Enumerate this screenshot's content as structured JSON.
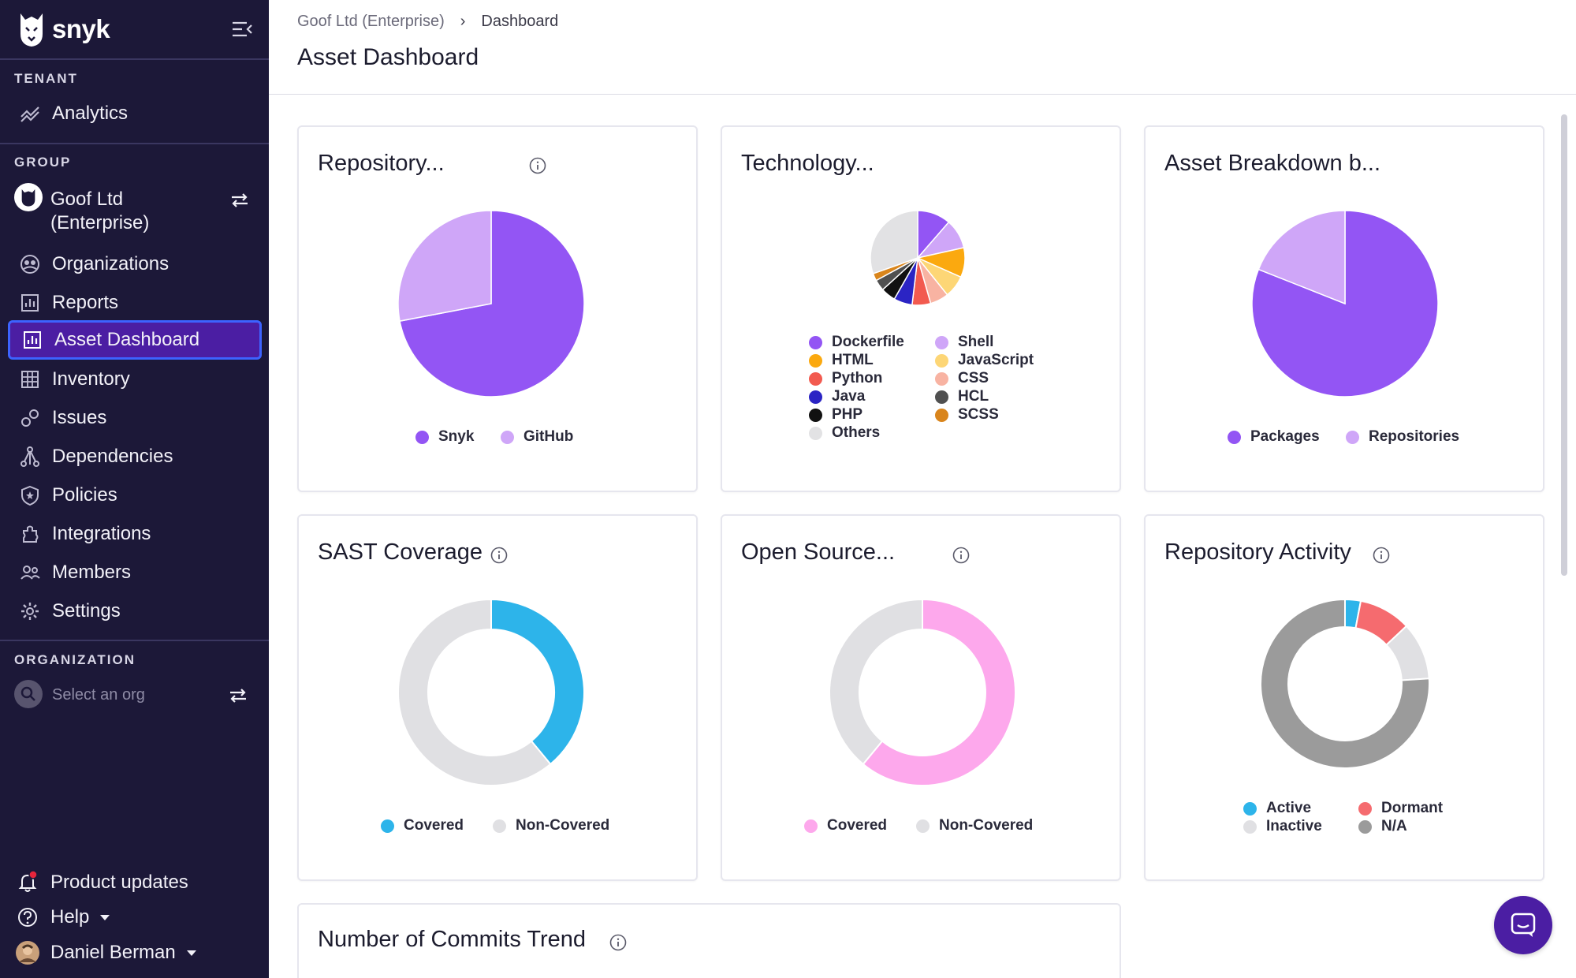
{
  "sidebar": {
    "brand": "snyk",
    "tenant_label": "TENANT",
    "tenant_items": [
      {
        "label": "Analytics",
        "icon": "analytics-icon"
      }
    ],
    "group_label": "GROUP",
    "group_name": "Goof Ltd (Enterprise)",
    "group_items": [
      {
        "label": "Organizations",
        "icon": "organizations-icon"
      },
      {
        "label": "Reports",
        "icon": "reports-icon"
      },
      {
        "label": "Asset Dashboard",
        "icon": "asset-dashboard-icon",
        "active": true
      },
      {
        "label": "Inventory",
        "icon": "inventory-icon"
      },
      {
        "label": "Issues",
        "icon": "issues-icon"
      },
      {
        "label": "Dependencies",
        "icon": "dependencies-icon"
      },
      {
        "label": "Policies",
        "icon": "policies-icon"
      },
      {
        "label": "Integrations",
        "icon": "integrations-icon"
      },
      {
        "label": "Members",
        "icon": "members-icon"
      },
      {
        "label": "Settings",
        "icon": "settings-icon"
      }
    ],
    "org_label": "ORGANIZATION",
    "org_placeholder": "Select an org",
    "product_updates": "Product updates",
    "help": "Help",
    "user": "Daniel Berman"
  },
  "header": {
    "breadcrumb": [
      "Goof Ltd (Enterprise)",
      "Dashboard"
    ],
    "title": "Asset Dashboard"
  },
  "cards": {
    "repository": {
      "title": "Repository..."
    },
    "technology": {
      "title": "Technology..."
    },
    "asset_breakdown": {
      "title": "Asset Breakdown b..."
    },
    "sast": {
      "title": "SAST Coverage"
    },
    "open_source": {
      "title": "Open Source..."
    },
    "repo_activity": {
      "title": "Repository Activity"
    },
    "commits_trend": {
      "title": "Number of Commits Trend"
    }
  },
  "colors": {
    "sidebar_bg": "#1c1838",
    "active_bg": "#4b1ea3",
    "purple": "#9355f4",
    "light_purple": "#cfa6f8",
    "sast_blue": "#2db4ea",
    "grey": "#e0e0e3",
    "pink": "#fda8ec"
  },
  "chart_data": [
    {
      "type": "pie",
      "card": "repository",
      "categories": [
        "Snyk",
        "GitHub"
      ],
      "values": [
        72,
        28
      ],
      "colors": [
        "#9355f4",
        "#cfa6f8"
      ]
    },
    {
      "type": "pie",
      "card": "technology",
      "categories": [
        "Dockerfile",
        "Shell",
        "HTML",
        "JavaScript",
        "CSS",
        "Python",
        "Java",
        "PHP",
        "HCL",
        "SCSS",
        "Others"
      ],
      "values": [
        9,
        8,
        8,
        6,
        5,
        5,
        5,
        4,
        3,
        2,
        24
      ],
      "colors": [
        "#9355f4",
        "#cfa6f8",
        "#fba90f",
        "#fdd676",
        "#f8b3a2",
        "#f25a4f",
        "#2b24c4",
        "#111111",
        "#505050",
        "#d9851c",
        "#e2e2e4"
      ],
      "legend_order": [
        "Dockerfile",
        "Shell",
        "HTML",
        "JavaScript",
        "Python",
        "CSS",
        "Java",
        "HCL",
        "PHP",
        "SCSS",
        "Others"
      ]
    },
    {
      "type": "pie",
      "card": "asset_breakdown",
      "categories": [
        "Packages",
        "Repositories"
      ],
      "values": [
        81,
        19
      ],
      "colors": [
        "#9355f4",
        "#cfa6f8"
      ]
    },
    {
      "type": "donut",
      "card": "sast",
      "categories": [
        "Covered",
        "Non-Covered"
      ],
      "values": [
        39,
        61
      ],
      "colors": [
        "#2db4ea",
        "#e0e0e3"
      ]
    },
    {
      "type": "donut",
      "card": "open_source",
      "categories": [
        "Covered",
        "Non-Covered"
      ],
      "values": [
        61,
        39
      ],
      "colors": [
        "#fda8ec",
        "#e0e0e3"
      ]
    },
    {
      "type": "donut",
      "card": "repo_activity",
      "categories": [
        "Active",
        "Dormant",
        "Inactive",
        "N/A"
      ],
      "values": [
        3,
        10,
        11,
        76
      ],
      "colors": [
        "#2db4ea",
        "#f56b6f",
        "#e0e0e3",
        "#9b9b9b"
      ],
      "legend_order": [
        "Active",
        "Dormant",
        "Inactive",
        "N/A"
      ]
    }
  ]
}
